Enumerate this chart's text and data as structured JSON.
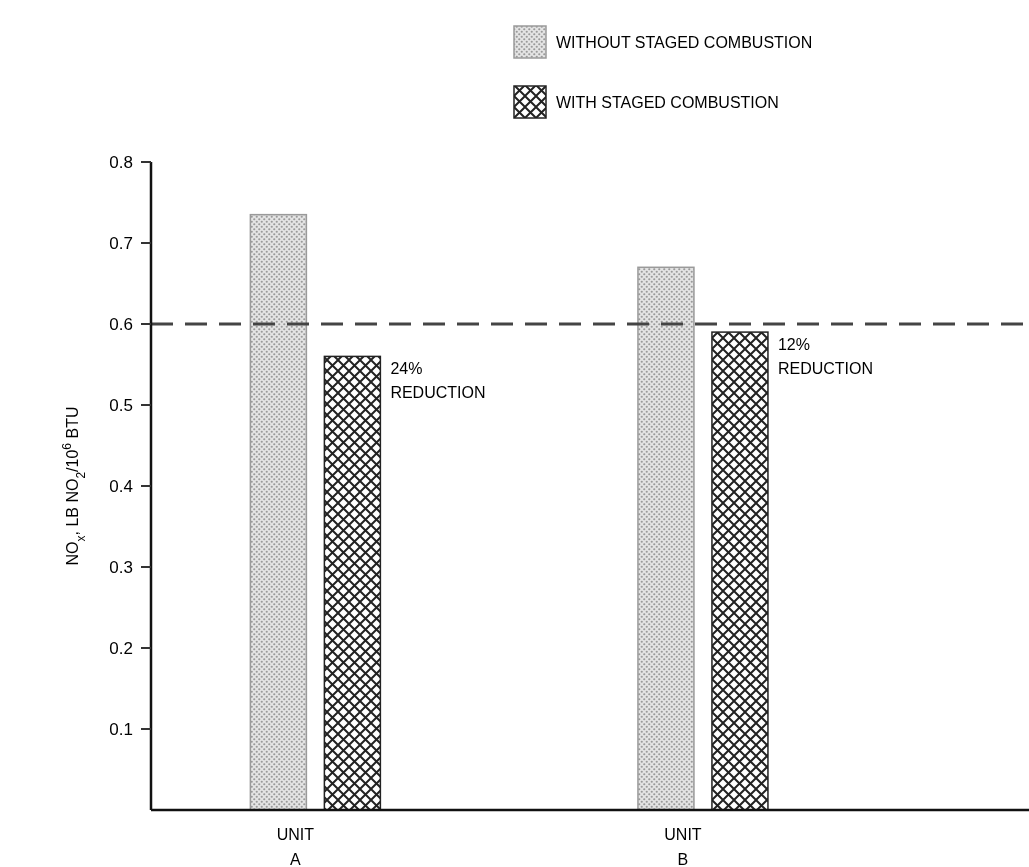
{
  "chart_data": {
    "type": "bar",
    "ylabel": "NO$_{x}$, LB NO$_{2}$/10$^{6}$ BTU",
    "categories": [
      "UNIT A",
      "UNIT B"
    ],
    "series": [
      {
        "name": "WITHOUT STAGED COMBUSTION",
        "color": "#9a9a9a",
        "values": [
          0.735,
          0.67
        ]
      },
      {
        "name": "WITH STAGED COMBUSTION",
        "color": "#222222",
        "values": [
          0.56,
          0.59
        ]
      }
    ],
    "ylim": [
      0,
      0.8
    ],
    "yticks": [
      0.1,
      0.2,
      0.3,
      0.4,
      0.5,
      0.6,
      0.7,
      0.8
    ],
    "ref_lines": [
      {
        "axis": "y",
        "value": 0.6,
        "line_style": "dashed"
      }
    ],
    "annotations": [
      "24% REDUCTION",
      "12% REDUCTION"
    ],
    "legend": "top right",
    "grid": false
  }
}
